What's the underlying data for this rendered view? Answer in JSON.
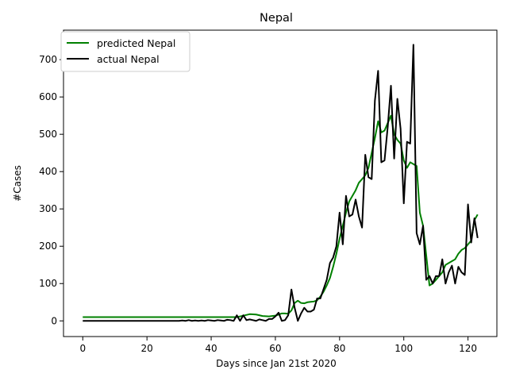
{
  "chart_data": {
    "type": "line",
    "title": "Nepal",
    "xlabel": "Days since Jan 21st 2020",
    "ylabel": "#Cases",
    "xlim": [
      -6,
      129
    ],
    "ylim": [
      -42,
      779
    ],
    "xticks": [
      0,
      20,
      40,
      60,
      80,
      100,
      120
    ],
    "yticks": [
      0,
      100,
      200,
      300,
      400,
      500,
      600,
      700
    ],
    "grid": false,
    "legend_position": "upper-left",
    "series": [
      {
        "name": "predicted Nepal",
        "color": "#008000",
        "x": [
          0,
          5,
          10,
          15,
          20,
          25,
          30,
          35,
          40,
          45,
          48,
          50,
          52,
          54,
          56,
          58,
          60,
          61,
          62,
          63,
          64,
          65,
          66,
          67,
          68,
          69,
          70,
          71,
          72,
          73,
          74,
          75,
          76,
          77,
          78,
          79,
          80,
          81,
          82,
          83,
          84,
          85,
          86,
          87,
          88,
          89,
          90,
          91,
          92,
          93,
          94,
          95,
          96,
          97,
          98,
          99,
          100,
          101,
          102,
          103,
          104,
          105,
          106,
          107,
          108,
          109,
          110,
          111,
          112,
          113,
          114,
          115,
          116,
          117,
          118,
          119,
          120,
          121,
          122,
          123
        ],
        "y": [
          10,
          10,
          10,
          10,
          10,
          10,
          10,
          10,
          10,
          10,
          10,
          14,
          18,
          17,
          13,
          12,
          14,
          17,
          20,
          20,
          19,
          28,
          48,
          54,
          48,
          47,
          50,
          51,
          52,
          55,
          65,
          78,
          95,
          115,
          145,
          180,
          220,
          255,
          290,
          320,
          335,
          350,
          370,
          380,
          390,
          410,
          450,
          490,
          535,
          505,
          510,
          530,
          550,
          500,
          485,
          475,
          430,
          410,
          425,
          420,
          415,
          290,
          255,
          175,
          95,
          100,
          110,
          120,
          130,
          150,
          155,
          160,
          165,
          180,
          190,
          195,
          205,
          215,
          270,
          285
        ]
      },
      {
        "name": "actual Nepal",
        "color": "#000000",
        "x": [
          0,
          5,
          10,
          15,
          20,
          25,
          30,
          31,
          32,
          33,
          34,
          35,
          36,
          37,
          38,
          39,
          40,
          41,
          42,
          43,
          44,
          45,
          46,
          47,
          48,
          49,
          50,
          51,
          52,
          53,
          54,
          55,
          56,
          57,
          58,
          59,
          60,
          61,
          62,
          63,
          64,
          65,
          66,
          67,
          68,
          69,
          70,
          71,
          72,
          73,
          74,
          75,
          76,
          77,
          78,
          79,
          80,
          81,
          82,
          83,
          84,
          85,
          86,
          87,
          88,
          89,
          90,
          91,
          92,
          93,
          94,
          95,
          96,
          97,
          98,
          99,
          100,
          101,
          102,
          103,
          104,
          105,
          106,
          107,
          108,
          109,
          110,
          111,
          112,
          113,
          114,
          115,
          116,
          117,
          118,
          119,
          120,
          121,
          122,
          123
        ],
        "y": [
          0,
          0,
          0,
          0,
          0,
          0,
          0,
          1,
          0,
          2,
          0,
          1,
          0,
          1,
          0,
          2,
          1,
          0,
          2,
          1,
          0,
          3,
          2,
          0,
          15,
          0,
          15,
          2,
          4,
          2,
          0,
          4,
          2,
          0,
          5,
          5,
          12,
          22,
          0,
          2,
          15,
          84,
          35,
          0,
          20,
          35,
          25,
          25,
          30,
          60,
          60,
          85,
          110,
          155,
          170,
          200,
          290,
          205,
          335,
          280,
          285,
          325,
          280,
          250,
          445,
          385,
          380,
          590,
          670,
          425,
          430,
          520,
          630,
          435,
          595,
          515,
          315,
          480,
          475,
          740,
          235,
          205,
          255,
          110,
          120,
          100,
          120,
          120,
          165,
          100,
          130,
          148,
          100,
          145,
          130,
          123,
          312,
          210,
          275,
          222
        ]
      }
    ]
  }
}
